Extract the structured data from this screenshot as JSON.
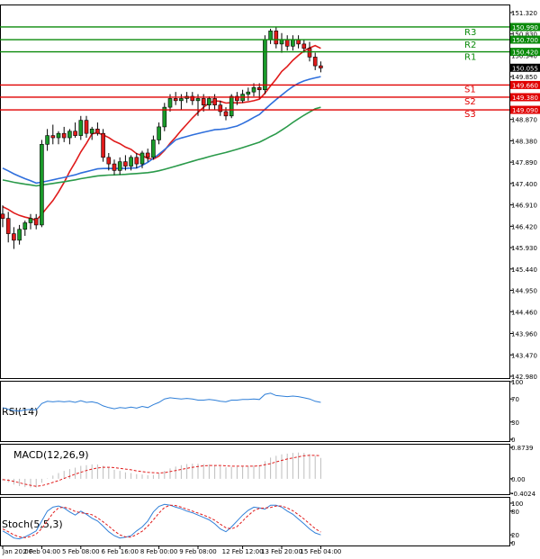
{
  "chart_data": [
    {
      "type": "candlestick",
      "panel": "price",
      "y_ticks": [
        "151.320",
        "150.830",
        "150.340",
        "149.850",
        "149.360",
        "148.870",
        "148.380",
        "147.890",
        "147.400",
        "146.910",
        "146.420",
        "145.930",
        "145.440",
        "144.950",
        "144.460",
        "143.960",
        "143.470",
        "142.980"
      ],
      "ylim": [
        142.98,
        151.32
      ],
      "last_price": "150.055",
      "levels": [
        {
          "label": "R3",
          "value": "150.990",
          "color": "#0a8a0a"
        },
        {
          "label": "R2",
          "value": "150.700",
          "color": "#0a8a0a"
        },
        {
          "label": "R1",
          "value": "150.420",
          "color": "#0a8a0a"
        },
        {
          "label": "S1",
          "value": "149.660",
          "color": "#e00000"
        },
        {
          "label": "S2",
          "value": "149.380",
          "color": "#e00000"
        },
        {
          "label": "S3",
          "value": "149.090",
          "color": "#e00000"
        }
      ],
      "candles": [
        [
          146.7,
          146.9,
          146.4,
          146.6
        ],
        [
          146.6,
          146.75,
          146.05,
          146.25
        ],
        [
          146.25,
          146.4,
          145.9,
          146.1
        ],
        [
          146.1,
          146.45,
          146.0,
          146.35
        ],
        [
          146.35,
          146.55,
          146.2,
          146.5
        ],
        [
          146.5,
          146.7,
          146.35,
          146.6
        ],
        [
          146.6,
          146.7,
          146.35,
          146.45
        ],
        [
          146.45,
          148.4,
          146.4,
          148.3
        ],
        [
          148.3,
          148.65,
          148.15,
          148.5
        ],
        [
          148.5,
          148.75,
          148.3,
          148.45
        ],
        [
          148.45,
          148.6,
          148.3,
          148.55
        ],
        [
          148.55,
          148.7,
          148.35,
          148.45
        ],
        [
          148.45,
          148.65,
          148.3,
          148.6
        ],
        [
          148.6,
          148.8,
          148.45,
          148.5
        ],
        [
          148.5,
          148.95,
          148.4,
          148.85
        ],
        [
          148.85,
          148.95,
          148.45,
          148.55
        ],
        [
          148.55,
          148.7,
          148.4,
          148.65
        ],
        [
          148.65,
          148.8,
          148.5,
          148.55
        ],
        [
          148.55,
          148.65,
          147.9,
          148.0
        ],
        [
          148.0,
          148.1,
          147.7,
          147.85
        ],
        [
          147.85,
          147.95,
          147.6,
          147.7
        ],
        [
          147.7,
          148.0,
          147.6,
          147.9
        ],
        [
          147.9,
          148.05,
          147.7,
          147.8
        ],
        [
          147.8,
          148.05,
          147.7,
          148.0
        ],
        [
          148.0,
          148.1,
          147.75,
          147.85
        ],
        [
          147.85,
          148.15,
          147.75,
          148.1
        ],
        [
          148.1,
          148.2,
          147.9,
          148.0
        ],
        [
          148.0,
          148.5,
          147.95,
          148.4
        ],
        [
          148.4,
          148.8,
          148.3,
          148.7
        ],
        [
          148.7,
          149.25,
          148.6,
          149.15
        ],
        [
          149.15,
          149.45,
          149.05,
          149.35
        ],
        [
          149.35,
          149.5,
          149.2,
          149.3
        ],
        [
          149.3,
          149.45,
          149.1,
          149.35
        ],
        [
          149.35,
          149.5,
          149.25,
          149.4
        ],
        [
          149.4,
          149.5,
          149.2,
          149.3
        ],
        [
          149.3,
          149.45,
          148.95,
          149.35
        ],
        [
          149.35,
          149.45,
          149.05,
          149.2
        ],
        [
          149.2,
          149.4,
          149.1,
          149.35
        ],
        [
          149.35,
          149.45,
          149.1,
          149.2
        ],
        [
          149.2,
          149.3,
          148.95,
          149.05
        ],
        [
          149.05,
          149.15,
          148.85,
          148.95
        ],
        [
          148.95,
          149.45,
          148.9,
          149.4
        ],
        [
          149.4,
          149.5,
          149.2,
          149.3
        ],
        [
          149.3,
          149.55,
          149.25,
          149.45
        ],
        [
          149.45,
          149.6,
          149.3,
          149.5
        ],
        [
          149.5,
          149.7,
          149.4,
          149.6
        ],
        [
          149.6,
          149.7,
          149.35,
          149.55
        ],
        [
          149.55,
          150.8,
          149.45,
          150.7
        ],
        [
          150.7,
          150.95,
          150.6,
          150.9
        ],
        [
          150.9,
          151.0,
          150.5,
          150.6
        ],
        [
          150.6,
          150.85,
          150.4,
          150.7
        ],
        [
          150.7,
          150.8,
          150.45,
          150.55
        ],
        [
          150.55,
          150.8,
          150.45,
          150.7
        ],
        [
          150.7,
          150.8,
          150.5,
          150.6
        ],
        [
          150.6,
          150.7,
          150.4,
          150.5
        ],
        [
          150.5,
          150.65,
          150.2,
          150.3
        ],
        [
          150.3,
          150.4,
          150.0,
          150.1
        ],
        [
          150.1,
          150.2,
          149.95,
          150.05
        ]
      ],
      "x_tick_labels": [
        "Jan 20:00",
        "2 Feb 04:00",
        "5 Feb 08:00",
        "6 Feb 16:00",
        "8 Feb 00:00",
        "9 Feb 08:00",
        "12 Feb 12:00",
        "13 Feb 20:00",
        "15 Feb 04:00"
      ],
      "x_tick_candle_index": [
        0,
        7,
        14,
        21,
        28,
        35,
        43,
        50,
        57
      ],
      "ma_colors": [
        "#e01b1b",
        "#2f6fdc",
        "#2a9a4a"
      ]
    },
    {
      "type": "line",
      "panel": "rsi",
      "label": "RSI(14)",
      "y_ticks": [
        "100",
        "70",
        "30",
        "0"
      ],
      "ylim": [
        0,
        100
      ],
      "color": "#2f7fd8",
      "values": [
        55,
        52,
        50,
        49,
        51,
        52,
        51,
        62,
        66,
        65,
        66,
        65,
        66,
        64,
        67,
        64,
        65,
        63,
        58,
        55,
        53,
        55,
        54,
        56,
        54,
        57,
        55,
        60,
        64,
        70,
        72,
        71,
        70,
        71,
        70,
        68,
        68,
        69,
        68,
        66,
        65,
        68,
        68,
        69,
        69,
        70,
        69,
        78,
        80,
        76,
        75,
        74,
        75,
        74,
        72,
        70,
        66,
        64
      ]
    },
    {
      "type": "bar",
      "panel": "macd",
      "label": "MACD(12,26,9)",
      "y_ticks": [
        "0.8739",
        "0.00",
        "-0.4024"
      ],
      "ylim": [
        -0.4024,
        0.8739
      ],
      "histogram": [
        -0.05,
        -0.1,
        -0.16,
        -0.2,
        -0.23,
        -0.24,
        -0.24,
        -0.11,
        0.01,
        0.09,
        0.16,
        0.22,
        0.27,
        0.31,
        0.36,
        0.38,
        0.4,
        0.4,
        0.36,
        0.31,
        0.25,
        0.22,
        0.18,
        0.16,
        0.13,
        0.12,
        0.1,
        0.11,
        0.15,
        0.22,
        0.29,
        0.34,
        0.38,
        0.41,
        0.42,
        0.42,
        0.41,
        0.4,
        0.38,
        0.35,
        0.32,
        0.33,
        0.33,
        0.34,
        0.35,
        0.37,
        0.38,
        0.49,
        0.59,
        0.64,
        0.68,
        0.7,
        0.72,
        0.73,
        0.72,
        0.69,
        0.64,
        0.58
      ],
      "signal": [
        -0.02,
        -0.04,
        -0.07,
        -0.11,
        -0.15,
        -0.18,
        -0.21,
        -0.19,
        -0.15,
        -0.1,
        -0.05,
        0.01,
        0.07,
        0.13,
        0.18,
        0.23,
        0.27,
        0.3,
        0.32,
        0.32,
        0.31,
        0.29,
        0.27,
        0.25,
        0.22,
        0.2,
        0.18,
        0.17,
        0.16,
        0.17,
        0.2,
        0.23,
        0.26,
        0.29,
        0.32,
        0.34,
        0.36,
        0.37,
        0.37,
        0.37,
        0.36,
        0.35,
        0.35,
        0.35,
        0.35,
        0.35,
        0.36,
        0.39,
        0.42,
        0.47,
        0.51,
        0.55,
        0.58,
        0.61,
        0.64,
        0.65,
        0.65,
        0.64
      ],
      "colors": {
        "histogram": "#bdbdbd",
        "signal": "#e01b1b"
      }
    },
    {
      "type": "line",
      "panel": "stoch",
      "label": "Stoch(5,5,3)",
      "y_ticks": [
        "100",
        "80",
        "20",
        "0"
      ],
      "ylim": [
        0,
        100
      ],
      "k": [
        30,
        22,
        12,
        10,
        15,
        22,
        30,
        55,
        80,
        90,
        93,
        88,
        78,
        70,
        80,
        72,
        62,
        55,
        42,
        28,
        18,
        12,
        14,
        18,
        30,
        40,
        55,
        78,
        92,
        97,
        95,
        90,
        86,
        80,
        76,
        70,
        64,
        58,
        48,
        35,
        28,
        40,
        55,
        70,
        82,
        90,
        88,
        85,
        95,
        95,
        90,
        80,
        72,
        60,
        48,
        35,
        25,
        20
      ],
      "d": [
        35,
        28,
        20,
        15,
        13,
        16,
        22,
        36,
        55,
        75,
        88,
        90,
        86,
        79,
        76,
        74,
        71,
        63,
        53,
        42,
        30,
        20,
        15,
        14,
        21,
        29,
        42,
        58,
        75,
        89,
        95,
        94,
        90,
        85,
        80,
        75,
        70,
        64,
        57,
        47,
        38,
        35,
        41,
        55,
        69,
        81,
        87,
        88,
        89,
        93,
        93,
        88,
        81,
        71,
        60,
        48,
        36,
        27
      ],
      "colors": {
        "k": "#2f7fd8",
        "d": "#e01b1b"
      }
    }
  ]
}
